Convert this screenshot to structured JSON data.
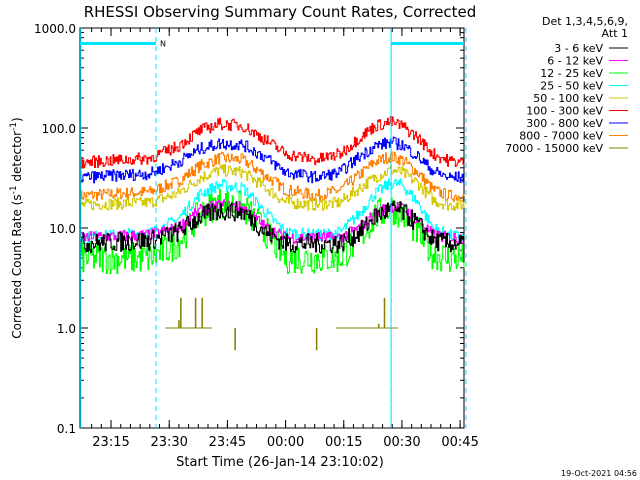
{
  "chart_data": {
    "type": "line",
    "title": "RHESSI Observing Summary Count Rates, Corrected",
    "xlabel": "Start Time (26-Jan-14 23:10:02)",
    "ylabel_prefix": "Corrected Count Rate (s",
    "ylabel_sup1": "-1",
    "ylabel_mid": " detector",
    "ylabel_sup2": "-1",
    "ylabel_suffix": ")",
    "y_scale": "log",
    "ylim": [
      0.1,
      1000
    ],
    "y_ticks": [
      {
        "value": 1000,
        "label": "1000.0"
      },
      {
        "value": 100,
        "label": "100.0"
      },
      {
        "value": 10,
        "label": "10.0"
      },
      {
        "value": 1,
        "label": "1.0"
      },
      {
        "value": 0.1,
        "label": "0.1"
      }
    ],
    "xlim_minutes": [
      -3,
      96
    ],
    "x_ticks": [
      {
        "t": 5,
        "label": "23:15"
      },
      {
        "t": 20,
        "label": "23:30"
      },
      {
        "t": 35,
        "label": "23:45"
      },
      {
        "t": 50,
        "label": "00:00"
      },
      {
        "t": 65,
        "label": "00:15"
      },
      {
        "t": 80,
        "label": "00:30"
      },
      {
        "t": 95,
        "label": "00:45"
      }
    ],
    "legend_header": [
      "Det 1,3,4,5,6,9,",
      "Att 1"
    ],
    "legend_position": "right",
    "series": [
      {
        "name": "3 - 6 keV",
        "color": "#000000",
        "x": [
          -3,
          15,
          22,
          28,
          33,
          39,
          45,
          50,
          58,
          64,
          69,
          73,
          77,
          80,
          84,
          88,
          92,
          96
        ],
        "y": [
          7,
          7.5,
          9,
          13,
          15,
          14.5,
          9,
          7,
          7,
          7,
          9,
          13,
          15.5,
          14.5,
          11,
          7.5,
          7,
          7
        ]
      },
      {
        "name": "6 - 12 keV",
        "color": "#ff00ff",
        "x": [
          -3,
          15,
          22,
          28,
          33,
          39,
          45,
          50,
          58,
          64,
          69,
          73,
          77,
          80,
          84,
          88,
          92,
          96
        ],
        "y": [
          8,
          8.5,
          10,
          15,
          17,
          16,
          10,
          8,
          8,
          8,
          10,
          14,
          16.5,
          16,
          12,
          8.5,
          8,
          8
        ]
      },
      {
        "name": "12 - 25 keV",
        "color": "#00ff00",
        "x": [
          -3,
          15,
          22,
          28,
          33,
          39,
          45,
          50,
          58,
          64,
          69,
          73,
          77,
          80,
          84,
          88,
          92,
          96
        ],
        "y": [
          5,
          5,
          7,
          14,
          18,
          16,
          9,
          5,
          5,
          5,
          8,
          13,
          16,
          14,
          9,
          5.5,
          5,
          5
        ]
      },
      {
        "name": "25 - 50 keV",
        "color": "#00ffff",
        "x": [
          -3,
          15,
          22,
          28,
          33,
          39,
          45,
          50,
          58,
          64,
          69,
          73,
          77,
          80,
          84,
          88,
          92,
          96
        ],
        "y": [
          8,
          9,
          12,
          22,
          27,
          25,
          14,
          9,
          8.5,
          9,
          14,
          22,
          28,
          27,
          18,
          10,
          8.5,
          8
        ]
      },
      {
        "name": "50 - 100 keV",
        "color": "#d4c800",
        "x": [
          -3,
          15,
          22,
          28,
          33,
          39,
          45,
          50,
          58,
          64,
          69,
          73,
          77,
          80,
          84,
          88,
          92,
          96
        ],
        "y": [
          17,
          18,
          22,
          32,
          38,
          36,
          25,
          18,
          17,
          18,
          25,
          32,
          38,
          36,
          28,
          19,
          17,
          17
        ]
      },
      {
        "name": "100 - 300 keV",
        "color": "#ff0000",
        "x": [
          -3,
          15,
          22,
          28,
          33,
          39,
          45,
          50,
          58,
          64,
          69,
          73,
          77,
          80,
          84,
          88,
          92,
          96
        ],
        "y": [
          45,
          50,
          65,
          95,
          110,
          105,
          75,
          55,
          48,
          55,
          80,
          105,
          115,
          105,
          80,
          55,
          47,
          45
        ]
      },
      {
        "name": "300 - 800 keV",
        "color": "#0000ff",
        "x": [
          -3,
          15,
          22,
          28,
          33,
          39,
          45,
          50,
          58,
          64,
          69,
          73,
          77,
          80,
          84,
          88,
          92,
          96
        ],
        "y": [
          32,
          35,
          45,
          62,
          70,
          68,
          50,
          36,
          32,
          36,
          52,
          66,
          72,
          68,
          52,
          37,
          32,
          32
        ]
      },
      {
        "name": "800 - 7000 keV",
        "color": "#ff8000",
        "x": [
          -3,
          15,
          22,
          28,
          33,
          39,
          45,
          50,
          58,
          64,
          69,
          73,
          77,
          80,
          84,
          88,
          92,
          96
        ],
        "y": [
          21,
          23,
          29,
          42,
          50,
          48,
          33,
          24,
          21,
          24,
          34,
          46,
          52,
          48,
          36,
          24,
          21,
          21
        ]
      },
      {
        "name": "7000 - 15000 keV",
        "color": "#808000",
        "spikes": [
          [
            19,
            1
          ],
          [
            22.5,
            1.2
          ],
          [
            23,
            2
          ],
          [
            26.8,
            2
          ],
          [
            28.5,
            2
          ],
          [
            30.5,
            1.0
          ],
          [
            37,
            0.6
          ],
          [
            58,
            0.6
          ],
          [
            74,
            1.1
          ],
          [
            75.5,
            2
          ]
        ],
        "flat": [
          [
            19,
            31
          ],
          [
            63,
            79
          ]
        ]
      }
    ],
    "saa_flags": [
      {
        "x_start": -3,
        "x_end": 16.6,
        "y": 700,
        "label": "N"
      },
      {
        "x_start": 77.2,
        "x_end": 96,
        "y": 700
      }
    ],
    "vlines_dashed": [
      16.6,
      77.2,
      96.5
    ],
    "vlines_solid": [
      -2.8,
      77.2
    ]
  },
  "footer": {
    "timestamp": "19-Oct-2021 04:56"
  }
}
